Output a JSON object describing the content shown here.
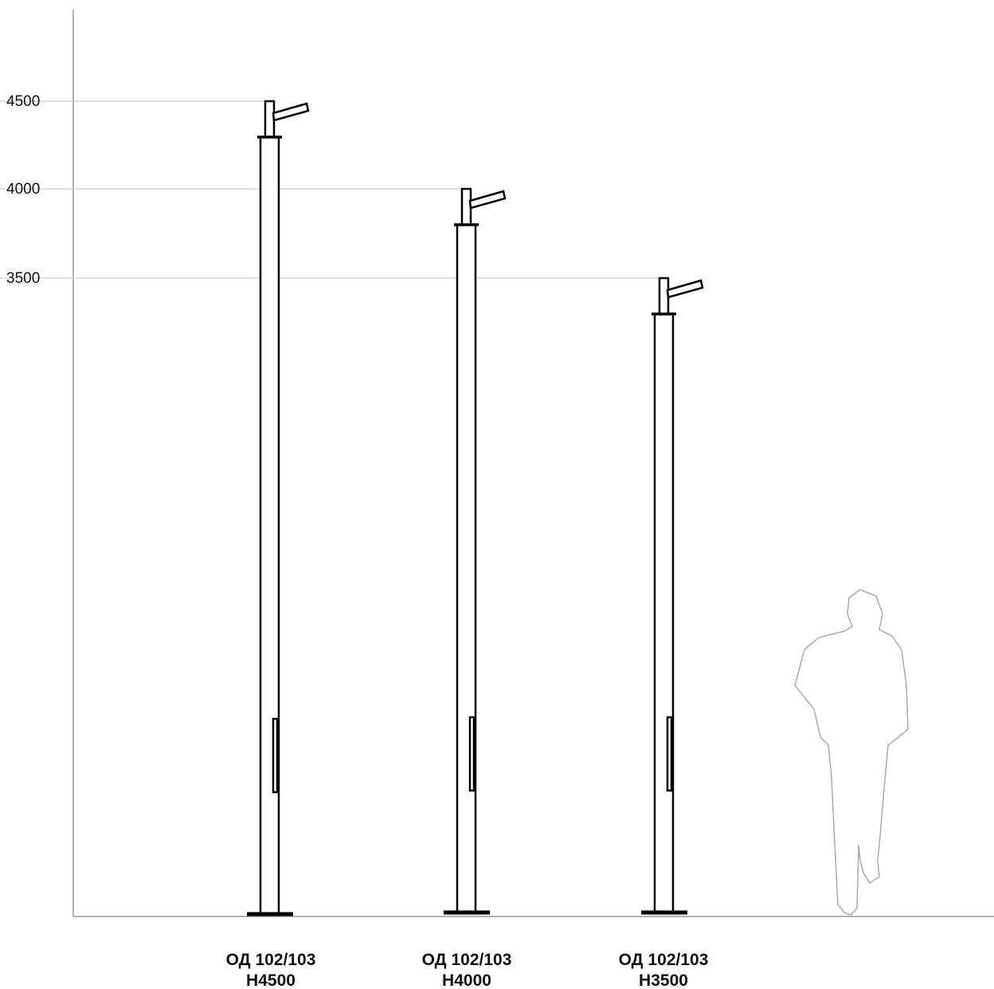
{
  "levels": [
    "4500",
    "4000",
    "3500"
  ],
  "poles": [
    {
      "model": "ОД 102/103",
      "height": "H4500"
    },
    {
      "model": "ОД 102/103",
      "height": "H4000"
    },
    {
      "model": "ОД 102/103",
      "height": "H3500"
    }
  ]
}
